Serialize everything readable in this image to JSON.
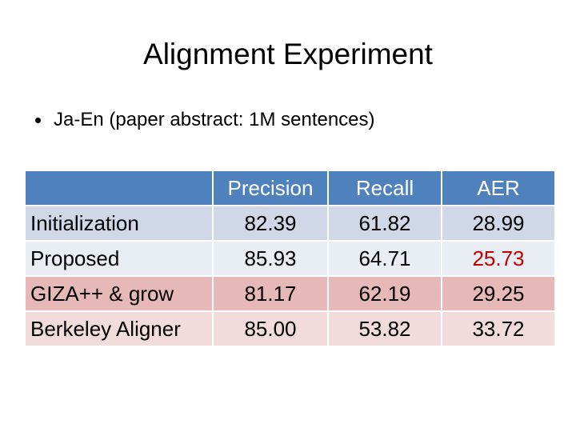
{
  "slide": {
    "title": "Alignment Experiment",
    "bullet": "Ja-En (paper abstract: 1M sentences)"
  },
  "table": {
    "headers": [
      "",
      "Precision",
      "Recall",
      "AER"
    ],
    "rows": [
      {
        "label": "Initialization",
        "precision": "82.39",
        "recall": "61.82",
        "aer": "28.99"
      },
      {
        "label": "Proposed",
        "precision": "85.93",
        "recall": "64.71",
        "aer": "25.73"
      },
      {
        "label": "GIZA++ & grow",
        "precision": "81.17",
        "recall": "62.19",
        "aer": "29.25"
      },
      {
        "label": "Berkeley Aligner",
        "precision": "85.00",
        "recall": "53.82",
        "aer": "33.72"
      }
    ]
  },
  "colors": {
    "header_bg": "#4f81bd",
    "row_initialization": "#d0d8e8",
    "row_proposed": "#e9edf4",
    "row_giza": "#e6b9b8",
    "row_berkeley": "#f2dcdb",
    "highlight_text": "#c00000"
  },
  "icons": {
    "bullet": "bullet-dot-icon"
  }
}
